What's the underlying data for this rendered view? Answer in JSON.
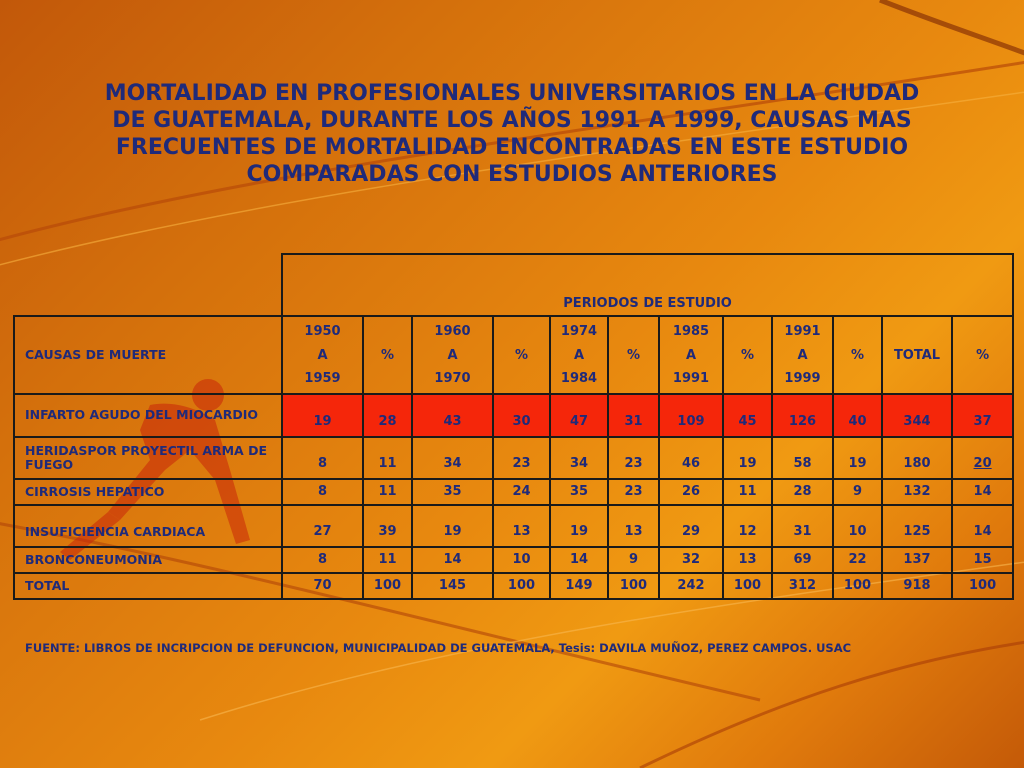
{
  "title_lines": [
    "MORTALIDAD EN PROFESIONALES UNIVERSITARIOS EN LA CIUDAD",
    "DE GUATEMALA, DURANTE LOS AÑOS 1991 A 1999, CAUSAS MAS",
    "FRECUENTES   DE MORTALIDAD ENCONTRADAS EN ESTE ESTUDIO",
    "COMPARADAS CON ESTUDIOS ANTERIORES"
  ],
  "table": {
    "period_header": "PERIODOS DE ESTUDIO",
    "cause_header": "CAUSAS DE MUERTE",
    "periods": [
      {
        "from": "1950",
        "sep": "A",
        "to": "1959"
      },
      {
        "from": "1960",
        "sep": "A",
        "to": "1970"
      },
      {
        "from": "1974",
        "sep": "A",
        "to": "1984"
      },
      {
        "from": "1985",
        "sep": "A",
        "to": "1991"
      },
      {
        "from": "1991",
        "sep": "A",
        "to": "1999"
      }
    ],
    "pct_label": "%",
    "total_label": "TOTAL",
    "rows": [
      {
        "cause": "INFARTO AGUDO DEL MIOCARDIO",
        "values": [
          "19",
          "28",
          "43",
          "30",
          "47",
          "31",
          "109",
          "45",
          "126",
          "40",
          "344",
          "37"
        ]
      },
      {
        "cause": "HERIDASPOR PROYECTIL ARMA DE FUEGO",
        "values": [
          "8",
          "11",
          "34",
          "23",
          "34",
          "23",
          "46",
          "19",
          "58",
          "19",
          "180",
          "20"
        ]
      },
      {
        "cause": "CIRROSIS HEPATICO",
        "values": [
          "8",
          "11",
          "35",
          "24",
          "35",
          "23",
          "26",
          "11",
          "28",
          "9",
          "132",
          "14"
        ]
      },
      {
        "cause": "INSUFICIENCIA CARDIACA",
        "values": [
          "27",
          "39",
          "19",
          "13",
          "19",
          "13",
          "29",
          "12",
          "31",
          "10",
          "125",
          "14"
        ]
      },
      {
        "cause": "BRONCONEUMONIA",
        "values": [
          "8",
          "11",
          "14",
          "10",
          "14",
          "9",
          "32",
          "13",
          "69",
          "22",
          "137",
          "15"
        ]
      },
      {
        "cause": "TOTAL",
        "values": [
          "70",
          "100",
          "145",
          "100",
          "149",
          "100",
          "242",
          "100",
          "312",
          "100",
          "918",
          "100"
        ]
      }
    ]
  },
  "source": "FUENTE:  LIBROS DE INCRIPCION DE DEFUNCION, MUNICIPALIDAD DE GUATEMALA, Tesis: DAVILA MUÑOZ, PEREZ CAMPOS.  USAC",
  "colors": {
    "text": "#1f2a7a",
    "highlight_row": "#f5260a",
    "background": "#e8890f"
  }
}
